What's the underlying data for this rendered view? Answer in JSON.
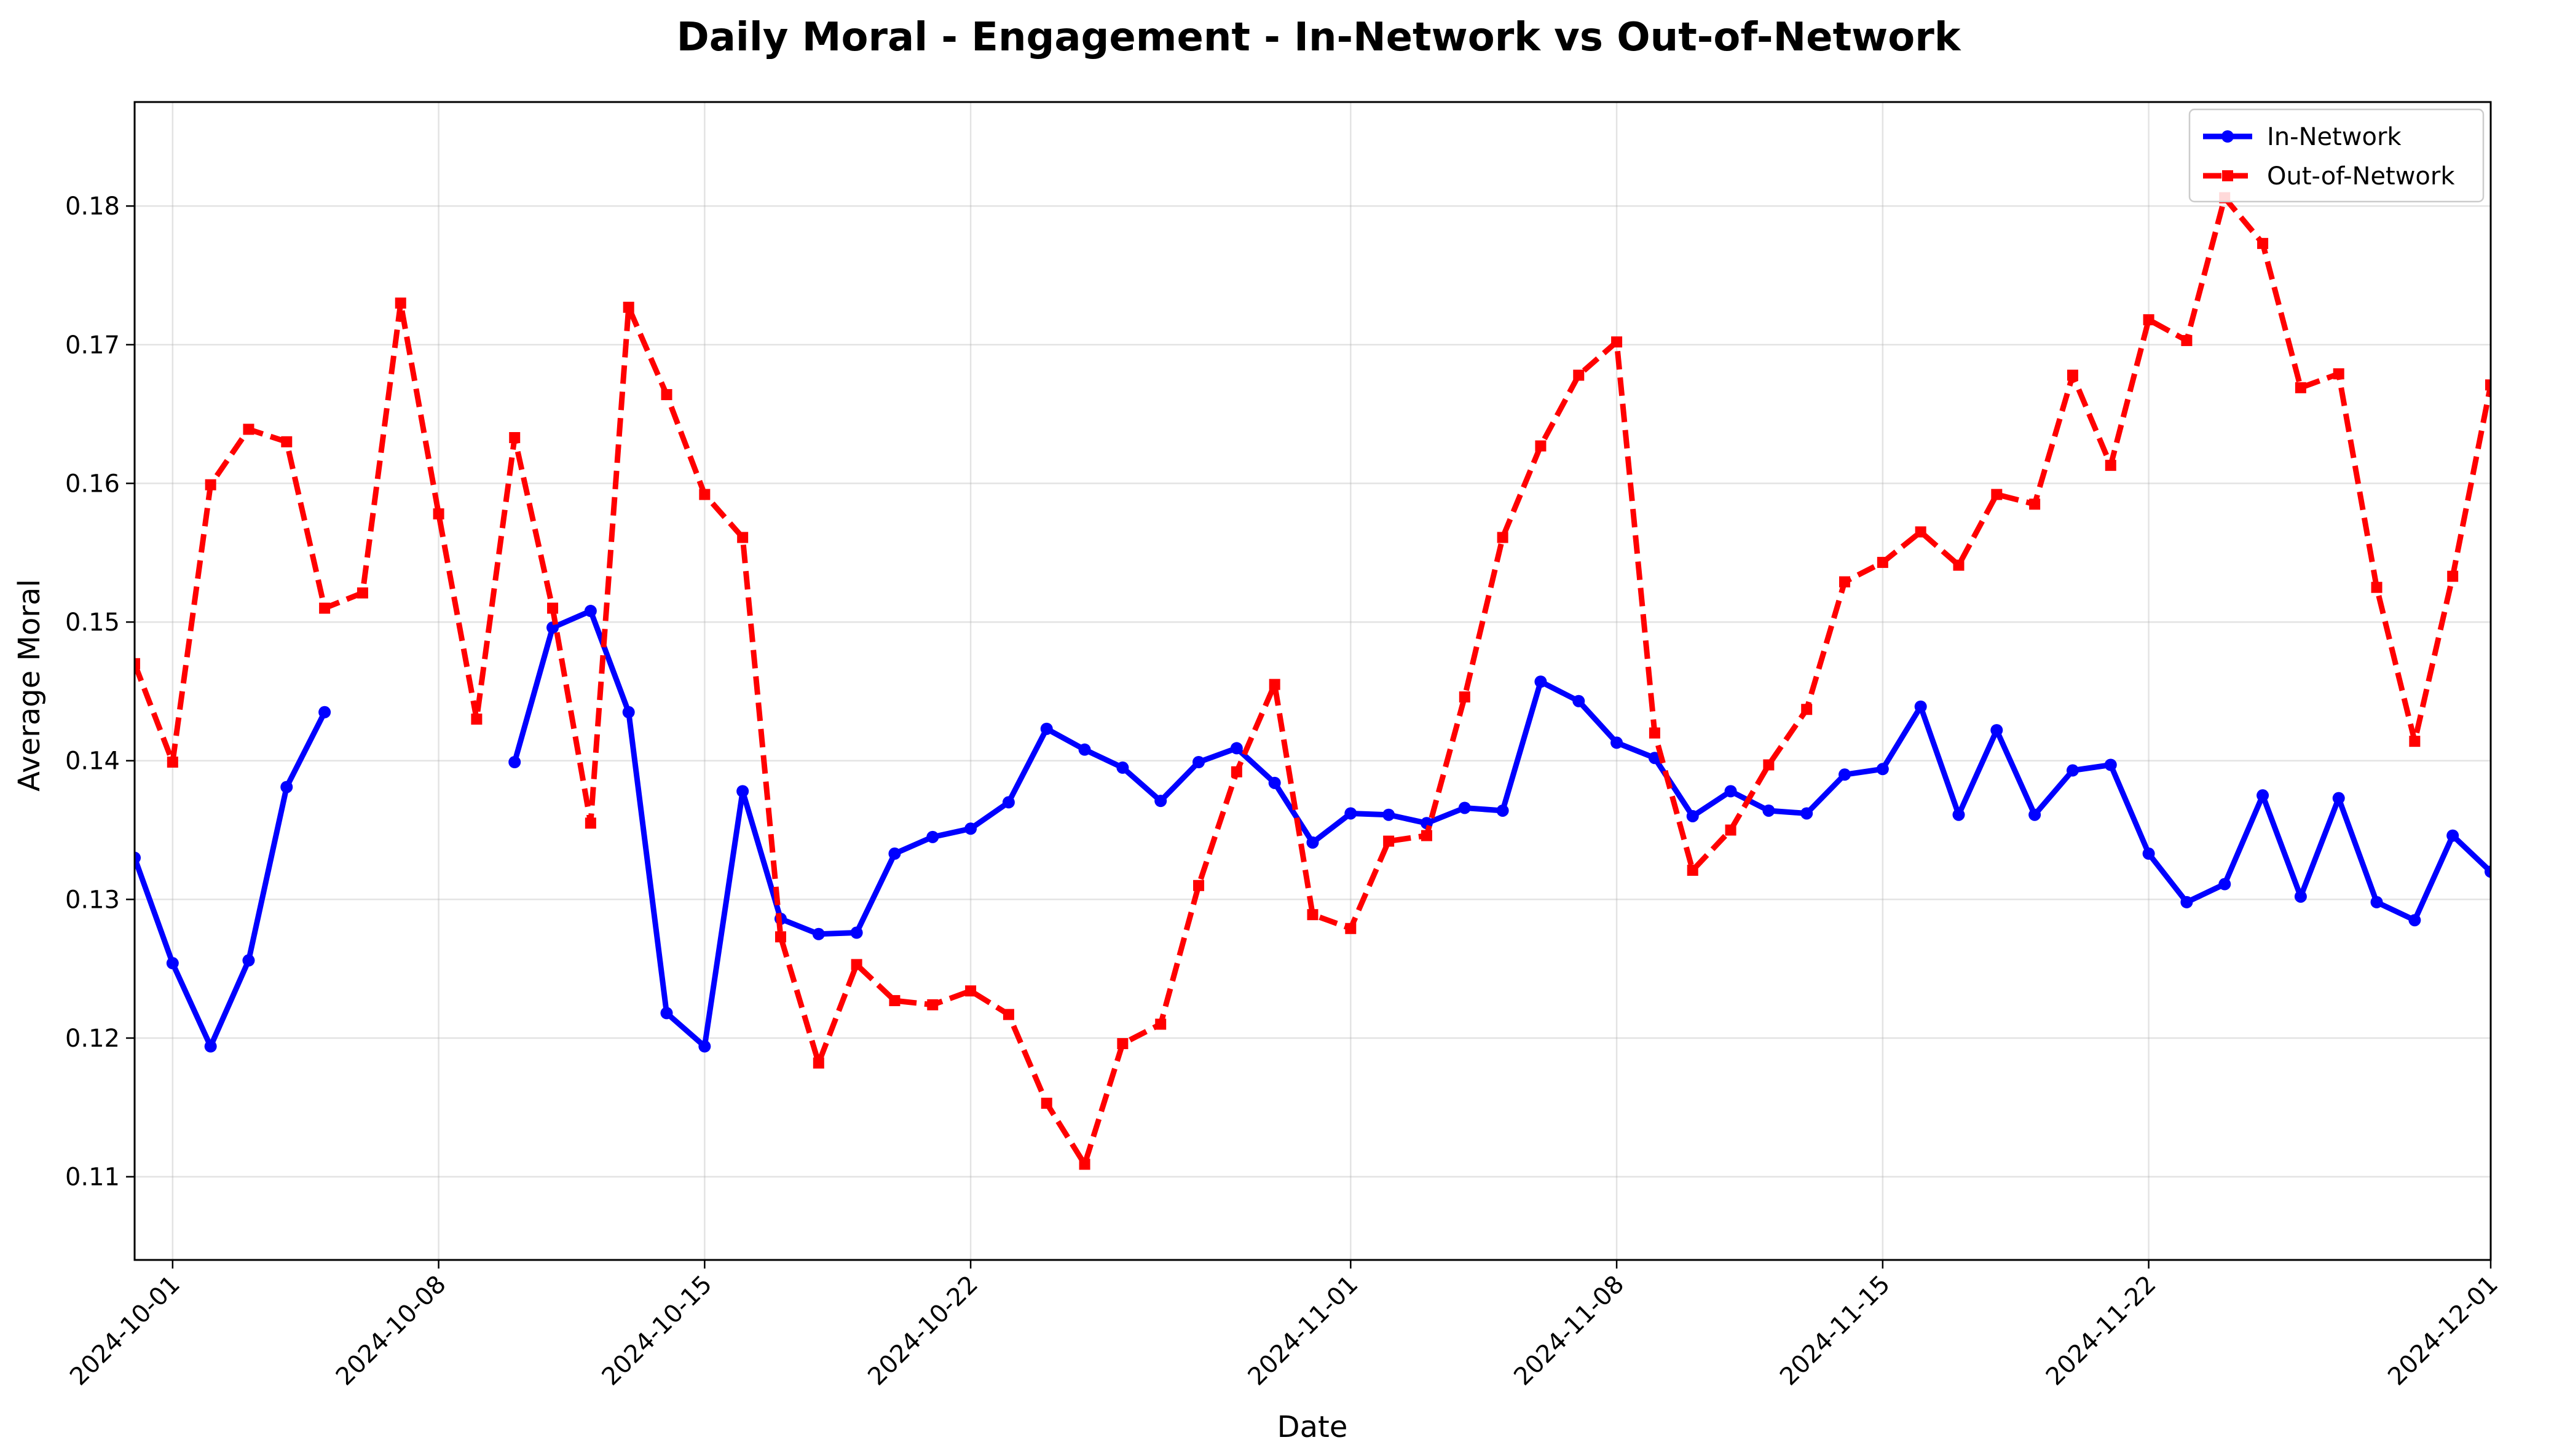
{
  "chart_data": {
    "type": "line",
    "title": "Daily Moral - Engagement - In-Network vs Out-of-Network",
    "xlabel": "Date",
    "ylabel": "Average Moral",
    "x_start": "2024-09-30",
    "x_end": "2024-12-01",
    "xlim": [
      "2024-09-30",
      "2024-12-01"
    ],
    "ylim": [
      0.104,
      0.1875
    ],
    "y_ticks": [
      "0.11",
      "0.12",
      "0.13",
      "0.14",
      "0.15",
      "0.16",
      "0.17",
      "0.18"
    ],
    "x_ticks": [
      "2024-10-01",
      "2024-10-08",
      "2024-10-15",
      "2024-10-22",
      "2024-11-01",
      "2024-11-08",
      "2024-11-15",
      "2024-11-22",
      "2024-12-01"
    ],
    "grid": true,
    "legend_position": "upper right",
    "series": [
      {
        "name": "In-Network",
        "color": "#0000ff",
        "style": "solid",
        "marker": "circle",
        "values": [
          0.133,
          0.1254,
          0.1194,
          0.1256,
          0.1381,
          0.1435,
          null,
          null,
          null,
          null,
          0.1399,
          0.1496,
          0.1508,
          0.1435,
          0.1218,
          0.1194,
          0.1378,
          0.1286,
          0.1275,
          0.1276,
          0.1333,
          0.1345,
          0.1351,
          0.137,
          0.1423,
          0.1408,
          0.1395,
          0.1371,
          0.1399,
          0.1409,
          0.1384,
          0.1341,
          0.1362,
          0.1361,
          0.1355,
          0.1366,
          0.1364,
          0.1457,
          0.1443,
          0.1413,
          0.1402,
          0.136,
          0.1378,
          0.1364,
          0.1362,
          0.139,
          0.1394,
          0.1439,
          0.1361,
          0.1422,
          0.1361,
          0.1393,
          0.1397,
          0.1333,
          0.1298,
          0.1311,
          0.1375,
          0.1302,
          0.1373,
          0.1298,
          0.1285,
          0.1346,
          0.132
        ]
      },
      {
        "name": "Out-of-Network",
        "color": "#ff0000",
        "style": "dashed",
        "marker": "square",
        "values": [
          0.147,
          0.1399,
          0.1599,
          0.1639,
          0.163,
          0.151,
          0.1521,
          0.173,
          0.1578,
          0.143,
          0.1633,
          0.151,
          0.1355,
          0.1727,
          0.1664,
          0.1592,
          0.1561,
          0.1273,
          0.1182,
          0.1253,
          0.1227,
          0.1224,
          0.1234,
          0.1217,
          0.1153,
          0.1109,
          0.1196,
          0.121,
          0.131,
          0.1392,
          0.1455,
          0.1289,
          0.1279,
          0.1342,
          0.1346,
          0.1446,
          0.1561,
          0.1627,
          0.1678,
          0.1702,
          0.142,
          0.1321,
          0.135,
          0.1397,
          0.1437,
          0.1529,
          0.1543,
          0.1565,
          0.1541,
          0.1592,
          0.1585,
          0.1678,
          0.1613,
          0.1718,
          0.1703,
          0.1806,
          0.1773,
          0.1669,
          0.1679,
          0.1525,
          0.1414,
          0.1533,
          0.1671
        ]
      }
    ]
  }
}
